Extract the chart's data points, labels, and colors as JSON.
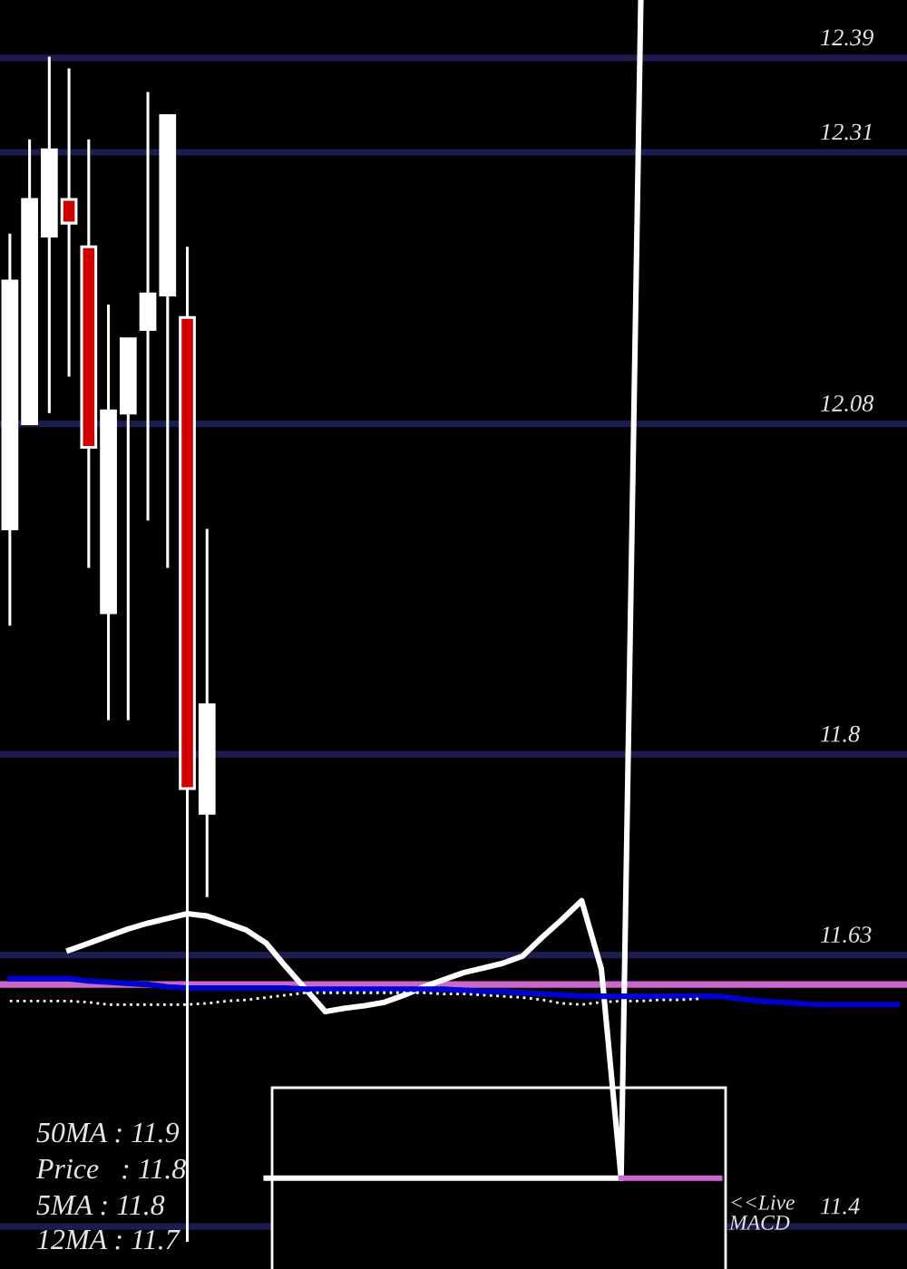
{
  "chart_data": {
    "type": "candlestick",
    "categories": [
      null,
      null,
      null,
      null,
      null,
      null,
      null,
      null,
      null,
      null,
      null,
      null,
      null,
      null,
      null,
      null,
      null,
      null,
      null,
      null,
      null,
      null,
      null,
      null,
      null,
      null,
      null,
      null,
      null,
      null,
      null,
      null,
      null,
      null,
      null,
      null,
      null,
      null,
      null,
      null,
      null,
      null,
      null,
      null,
      null,
      null
    ],
    "ohlc": [
      [
        11.991,
        12.241,
        11.909,
        12.201
      ],
      [
        12.08,
        12.321,
        12.08,
        12.27
      ],
      [
        12.239,
        12.391,
        12.089,
        12.312
      ],
      [
        12.27,
        12.381,
        12.12,
        12.25
      ],
      [
        12.23,
        12.321,
        11.958,
        12.06
      ],
      [
        11.92,
        12.181,
        11.829,
        12.091
      ],
      [
        12.089,
        12.152,
        11.829,
        12.152
      ],
      [
        12.16,
        12.361,
        11.998,
        12.19
      ],
      [
        12.189,
        12.341,
        11.958,
        12.341
      ],
      [
        12.17,
        12.23,
        11.387,
        11.771
      ],
      [
        11.75,
        11.991,
        11.679,
        11.842
      ],
      null,
      null,
      null,
      null,
      null,
      null,
      null,
      null,
      null,
      null,
      null,
      null,
      null,
      null,
      null,
      null,
      null,
      null,
      null,
      null,
      null,
      null,
      null,
      null,
      null,
      null,
      null,
      null,
      null,
      null,
      null,
      null,
      null,
      null,
      null
    ],
    "colors": [
      "#ffffff",
      "#ffffff",
      "#ffffff",
      "#cc0000",
      "#cc0000",
      "#ffffff",
      "#ffffff",
      "#ffffff",
      "#ffffff",
      "#cc0000",
      "#ffffff",
      null,
      null,
      null,
      null,
      null,
      null,
      null,
      null,
      null,
      null,
      null,
      null,
      null,
      null,
      null,
      null,
      null,
      null,
      null,
      null,
      null,
      null,
      null,
      null,
      null,
      null,
      null,
      null,
      null,
      null,
      null,
      null,
      null,
      null,
      null
    ],
    "series": [
      {
        "type": "line",
        "color": "#ffffff",
        "values": [
          null,
          null,
          null,
          11.634,
          11.64,
          11.646,
          11.652,
          11.657,
          11.661,
          11.665,
          11.663,
          11.657,
          11.651,
          11.64,
          11.62,
          11.601,
          11.582,
          11.585,
          11.587,
          11.59,
          11.596,
          11.603,
          11.609,
          11.615,
          11.619,
          11.623,
          11.629,
          11.645,
          11.66,
          11.676,
          11.618,
          11.441,
          12.439,
          null,
          null,
          null,
          null,
          null,
          null,
          null,
          null,
          null,
          null,
          null,
          null,
          null
        ]
      },
      {
        "type": "line",
        "color": "#0000cc",
        "values": [
          11.61,
          11.61,
          11.61,
          11.61,
          11.608,
          11.607,
          11.606,
          11.605,
          11.603,
          11.602,
          11.602,
          11.602,
          11.602,
          11.602,
          11.602,
          11.601,
          11.601,
          11.601,
          11.601,
          11.601,
          11.601,
          11.601,
          11.601,
          11.6,
          11.599,
          11.599,
          11.598,
          11.597,
          11.596,
          11.595,
          11.595,
          11.595,
          11.595,
          11.595,
          11.595,
          11.595,
          11.595,
          11.593,
          11.591,
          11.59,
          11.589,
          11.588,
          11.588,
          11.588,
          11.588,
          11.588
        ]
      },
      {
        "type": "line",
        "color": "#ffffff",
        "line_style": "dotted",
        "values": [
          11.591,
          11.591,
          11.591,
          11.591,
          11.59,
          11.588,
          11.588,
          11.588,
          11.588,
          11.588,
          11.589,
          11.591,
          11.592,
          11.594,
          11.596,
          11.598,
          11.598,
          11.598,
          11.598,
          11.598,
          11.598,
          11.598,
          11.597,
          11.597,
          11.596,
          11.595,
          11.594,
          11.592,
          11.589,
          11.588,
          11.59,
          11.591,
          11.591,
          11.592,
          11.592,
          11.593,
          null,
          null,
          null,
          null,
          null,
          null,
          null,
          null,
          null,
          null
        ]
      },
      {
        "type": "line",
        "color": "#ffffff",
        "values": [
          null,
          null,
          null,
          null,
          null,
          null,
          null,
          null,
          null,
          null,
          null,
          null,
          null,
          11.441,
          11.441,
          11.441,
          11.441,
          11.441,
          11.441,
          11.441,
          11.441,
          11.441,
          11.441,
          11.441,
          11.441,
          11.441,
          11.441,
          11.441,
          11.441,
          11.441,
          11.441,
          11.441,
          null,
          null,
          null,
          null,
          null,
          null,
          null,
          null,
          null,
          null,
          null,
          null,
          null,
          null
        ]
      },
      {
        "type": "line",
        "color": "#cc66cc",
        "values": [
          null,
          null,
          null,
          null,
          null,
          null,
          null,
          null,
          null,
          null,
          null,
          null,
          null,
          null,
          null,
          null,
          null,
          null,
          null,
          null,
          null,
          null,
          null,
          null,
          null,
          null,
          null,
          null,
          null,
          null,
          null,
          11.441,
          11.441,
          11.441,
          11.441,
          11.441,
          11.441,
          null,
          null,
          null,
          null,
          null,
          null,
          null,
          null,
          null
        ]
      }
    ],
    "ref_lines": [
      {
        "axis": "y",
        "value": 12.39,
        "label": "12.39",
        "color": "#1c1c50"
      },
      {
        "axis": "y",
        "value": 12.31,
        "label": "12.31",
        "color": "#1c1c50"
      },
      {
        "axis": "y",
        "value": 12.08,
        "label": "12.08",
        "color": "#1c1c50"
      },
      {
        "axis": "y",
        "value": 11.8,
        "label": "11.8",
        "color": "#1c1c50"
      },
      {
        "axis": "y",
        "value": 11.63,
        "label": "11.63",
        "color": "#1c1c50"
      },
      {
        "axis": "y",
        "value": 11.4,
        "label": "11.4",
        "color": "#1c1c50"
      },
      {
        "axis": "y",
        "value": 11.605,
        "color": "#cc66cc"
      }
    ],
    "ylim": [
      11.364,
      12.439
    ],
    "annotations": [
      "50MA : 11.9",
      "Price   : 11.8",
      "5MA : 11.8",
      "12MA : 11.7",
      "<<Live\nMACD"
    ]
  }
}
